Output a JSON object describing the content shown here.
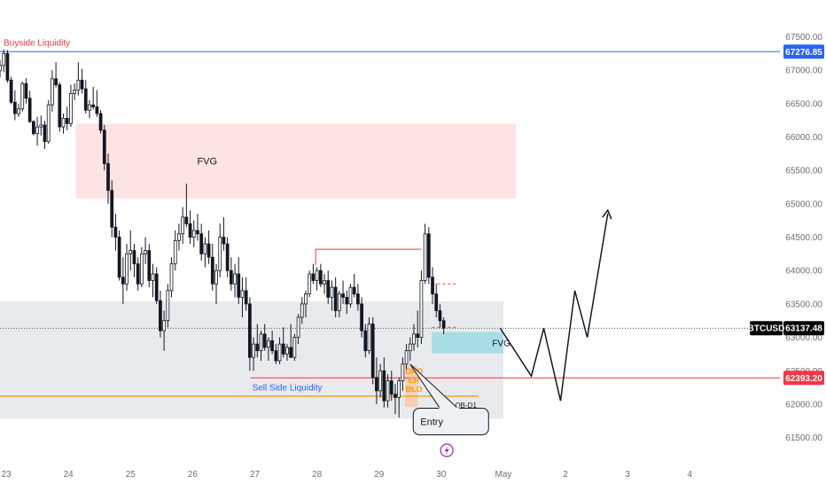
{
  "chart_data": {
    "type": "candlestick",
    "symbol": "BTCUSD",
    "y_axis": {
      "ticks": [
        "67500.00",
        "67000.00",
        "66500.00",
        "66000.00",
        "65500.00",
        "65000.00",
        "64500.00",
        "64000.00",
        "63500.00",
        "63000.00",
        "62500.00",
        "62000.00",
        "61500.00"
      ],
      "tick_values": [
        67500,
        67000,
        66500,
        66000,
        65500,
        65000,
        64500,
        64000,
        63500,
        63000,
        62500,
        62000,
        61500
      ],
      "ylim": [
        61150,
        68050
      ]
    },
    "x_axis": {
      "ticks": [
        "23",
        "24",
        "25",
        "26",
        "27",
        "28",
        "29",
        "30",
        "May",
        "2",
        "3",
        "4"
      ],
      "tick_days": [
        23,
        24,
        25,
        26,
        27,
        28,
        29,
        30,
        31,
        32,
        33,
        34
      ],
      "xlim": [
        22.9,
        35.45
      ]
    },
    "price_tags": [
      {
        "label": "67276.85",
        "value": 67276.85,
        "color": "#2962ff"
      },
      {
        "label": "63137.48",
        "value": 63137.48,
        "color": "#000000"
      },
      {
        "label": "62393.20",
        "value": 62393.2,
        "color": "#f23645"
      }
    ],
    "symbol_tag": "BTCUSD",
    "levels": [
      {
        "label": "Buyside Liquidity",
        "value": 67276.85,
        "color": "#2962ff"
      },
      {
        "label": "Sell Side Liquidity",
        "value": 62393.2,
        "color": "#f23645"
      },
      {
        "label": "",
        "value": 62120,
        "color": "#ff9800"
      }
    ],
    "zones": [
      {
        "label": "FVG",
        "x0": 24.12,
        "x1": 31.2,
        "y0": 65080,
        "y1": 66200,
        "color": "#fde3e3"
      },
      {
        "label": "FVG",
        "x0": 29.85,
        "x1": 31.0,
        "y0": 62760,
        "y1": 63080,
        "color": "#a8dde6"
      },
      {
        "label": "",
        "x0": 22.9,
        "x1": 31.0,
        "y0": 61780,
        "y1": 63540,
        "color": "#e8eaee"
      },
      {
        "label": "ORDER BLOCK",
        "x0": 29.42,
        "x1": 29.62,
        "y0": 61960,
        "y1": 62580,
        "color": "#f5cba7"
      }
    ],
    "annotations": {
      "ob_label": "OB-D1",
      "entry_label": "Entry",
      "order_block_text": "ORD ER BLO"
    },
    "candles": [
      [
        22.9,
        66990,
        67150,
        66890,
        67070
      ],
      [
        22.96,
        67070,
        67310,
        66970,
        67250
      ],
      [
        23.02,
        67250,
        67300,
        66810,
        66850
      ],
      [
        23.08,
        66850,
        66900,
        66490,
        66520
      ],
      [
        23.14,
        66520,
        66700,
        66250,
        66350
      ],
      [
        23.2,
        66350,
        66500,
        66300,
        66420
      ],
      [
        23.26,
        66420,
        66830,
        66380,
        66800
      ],
      [
        23.32,
        66800,
        66880,
        66500,
        66580
      ],
      [
        23.38,
        66580,
        66690,
        66210,
        66230
      ],
      [
        23.44,
        66230,
        66250,
        66020,
        66050
      ],
      [
        23.5,
        66050,
        66300,
        65870,
        66150
      ],
      [
        23.56,
        66150,
        66320,
        66020,
        66180
      ],
      [
        23.62,
        66180,
        66240,
        65820,
        65930
      ],
      [
        23.68,
        65930,
        66550,
        65900,
        66480
      ],
      [
        23.74,
        66480,
        67000,
        66380,
        66870
      ],
      [
        23.8,
        66870,
        67120,
        66740,
        66780
      ],
      [
        23.86,
        66780,
        66820,
        66080,
        66150
      ],
      [
        23.92,
        66150,
        66350,
        66050,
        66280
      ],
      [
        23.98,
        66280,
        66450,
        66100,
        66200
      ],
      [
        24.04,
        66200,
        66780,
        66150,
        66650
      ],
      [
        24.1,
        66650,
        66800,
        66550,
        66700
      ],
      [
        24.16,
        66700,
        67120,
        66620,
        66850
      ],
      [
        24.22,
        66850,
        67020,
        66650,
        66720
      ],
      [
        24.28,
        66720,
        66850,
        66350,
        66400
      ],
      [
        24.34,
        66400,
        66550,
        66280,
        66480
      ],
      [
        24.4,
        66480,
        66750,
        66410,
        66450
      ],
      [
        24.46,
        66450,
        66700,
        66300,
        66350
      ],
      [
        24.52,
        66350,
        66400,
        66050,
        66100
      ],
      [
        24.58,
        66100,
        66180,
        65500,
        65600
      ],
      [
        24.64,
        65600,
        65750,
        65000,
        65200
      ],
      [
        24.7,
        65200,
        65350,
        64500,
        64650
      ],
      [
        24.76,
        64650,
        64850,
        64300,
        64500
      ],
      [
        24.82,
        64500,
        64600,
        63850,
        63900
      ],
      [
        24.88,
        63900,
        64200,
        63500,
        63800
      ],
      [
        24.94,
        63800,
        64400,
        63700,
        64250
      ],
      [
        25.0,
        64250,
        64600,
        64000,
        64300
      ],
      [
        25.06,
        64300,
        64400,
        63900,
        64100
      ],
      [
        25.12,
        64100,
        64200,
        63700,
        63800
      ],
      [
        25.18,
        63800,
        64350,
        63750,
        64250
      ],
      [
        25.24,
        64250,
        64500,
        64100,
        64300
      ],
      [
        25.3,
        64300,
        64400,
        63750,
        63850
      ],
      [
        25.36,
        63850,
        64100,
        63600,
        63950
      ],
      [
        25.42,
        63950,
        64050,
        63500,
        63550
      ],
      [
        25.48,
        63550,
        63700,
        63000,
        63100
      ],
      [
        25.54,
        63100,
        63400,
        62800,
        63250
      ],
      [
        25.6,
        63250,
        63800,
        63150,
        63700
      ],
      [
        25.66,
        63700,
        64200,
        63600,
        64100
      ],
      [
        25.72,
        64100,
        64600,
        64000,
        64450
      ],
      [
        25.78,
        64450,
        64700,
        64300,
        64550
      ],
      [
        25.84,
        64550,
        64950,
        64400,
        64800
      ],
      [
        25.9,
        64800,
        65300,
        64650,
        64700
      ],
      [
        25.96,
        64700,
        64900,
        64400,
        64500
      ],
      [
        26.02,
        64500,
        64750,
        64350,
        64600
      ],
      [
        26.08,
        64600,
        64850,
        64450,
        64550
      ],
      [
        26.14,
        64550,
        64700,
        64150,
        64250
      ],
      [
        26.2,
        64250,
        64500,
        64050,
        64400
      ],
      [
        26.26,
        64400,
        64600,
        64100,
        64200
      ],
      [
        26.32,
        64200,
        64400,
        63700,
        63800
      ],
      [
        26.38,
        63800,
        64100,
        63500,
        64000
      ],
      [
        26.44,
        64000,
        64700,
        63900,
        64500
      ],
      [
        26.5,
        64500,
        64800,
        64300,
        64400
      ],
      [
        26.56,
        64400,
        64500,
        63900,
        64000
      ],
      [
        26.62,
        64000,
        64200,
        63700,
        63800
      ],
      [
        26.68,
        63800,
        64100,
        63600,
        63950
      ],
      [
        26.74,
        63950,
        64200,
        63500,
        63600
      ],
      [
        26.8,
        63600,
        63900,
        63300,
        63700
      ],
      [
        26.86,
        63700,
        63900,
        63400,
        63500
      ],
      [
        26.92,
        63500,
        63600,
        62500,
        62700
      ],
      [
        26.98,
        62700,
        63000,
        62500,
        62900
      ],
      [
        27.04,
        62900,
        63200,
        62700,
        62800
      ],
      [
        27.1,
        62800,
        63100,
        62650,
        63050
      ],
      [
        27.16,
        63050,
        63200,
        62800,
        62850
      ],
      [
        27.22,
        62850,
        63000,
        62650,
        62950
      ],
      [
        27.28,
        62950,
        63100,
        62750,
        62800
      ],
      [
        27.34,
        62800,
        62900,
        62600,
        62650
      ],
      [
        27.4,
        62650,
        63000,
        62600,
        62900
      ],
      [
        27.46,
        62900,
        63150,
        62700,
        62750
      ],
      [
        27.52,
        62750,
        62900,
        62650,
        62850
      ],
      [
        27.58,
        62850,
        63200,
        62700,
        62700
      ],
      [
        27.64,
        62700,
        63050,
        62650,
        63000
      ],
      [
        27.7,
        63000,
        63350,
        62900,
        63300
      ],
      [
        27.76,
        63300,
        63600,
        63200,
        63500
      ],
      [
        27.82,
        63500,
        63700,
        63300,
        63650
      ],
      [
        27.88,
        63650,
        64000,
        63600,
        63950
      ],
      [
        27.94,
        63950,
        64100,
        63800,
        63850
      ],
      [
        28.0,
        63850,
        64050,
        63700,
        64000
      ],
      [
        28.06,
        64000,
        64100,
        63750,
        63800
      ],
      [
        28.12,
        63800,
        63950,
        63650,
        63850
      ],
      [
        28.18,
        63850,
        64000,
        63500,
        63600
      ],
      [
        28.24,
        63600,
        63850,
        63400,
        63750
      ],
      [
        28.3,
        63750,
        63900,
        63300,
        63400
      ],
      [
        28.36,
        63400,
        63700,
        63300,
        63650
      ],
      [
        28.42,
        63650,
        63850,
        63500,
        63600
      ],
      [
        28.48,
        63600,
        63700,
        63350,
        63500
      ],
      [
        28.54,
        63500,
        63800,
        63450,
        63750
      ],
      [
        28.6,
        63750,
        63950,
        63600,
        63650
      ],
      [
        28.66,
        63650,
        63800,
        63400,
        63500
      ],
      [
        28.72,
        63500,
        63600,
        63000,
        63100
      ],
      [
        28.78,
        63100,
        63200,
        62700,
        62800
      ],
      [
        28.84,
        62800,
        63300,
        62750,
        63200
      ],
      [
        28.9,
        63200,
        63300,
        62300,
        62400
      ],
      [
        28.96,
        62400,
        62700,
        62000,
        62200
      ],
      [
        29.02,
        62200,
        62600,
        62100,
        62500
      ],
      [
        29.08,
        62500,
        62700,
        61950,
        62050
      ],
      [
        29.14,
        62050,
        62450,
        61950,
        62350
      ],
      [
        29.2,
        62350,
        62500,
        62050,
        62150
      ],
      [
        29.26,
        62150,
        62300,
        61850,
        62100
      ],
      [
        29.32,
        62100,
        62400,
        61800,
        62350
      ],
      [
        29.38,
        62350,
        62700,
        62200,
        62600
      ],
      [
        29.44,
        62600,
        62900,
        62500,
        62800
      ],
      [
        29.5,
        62800,
        63000,
        62650,
        62900
      ],
      [
        29.56,
        62900,
        63200,
        62800,
        63050
      ],
      [
        29.62,
        63050,
        63400,
        62850,
        63000
      ],
      [
        29.68,
        63000,
        64000,
        62900,
        63850
      ],
      [
        29.74,
        63850,
        64700,
        63800,
        64550
      ],
      [
        29.8,
        64550,
        64650,
        63800,
        63900
      ],
      [
        29.86,
        63900,
        64050,
        63500,
        63650
      ],
      [
        29.92,
        63650,
        63800,
        63300,
        63400
      ],
      [
        29.98,
        63400,
        63500,
        63150,
        63250
      ],
      [
        30.04,
        63250,
        63300,
        63050,
        63137
      ]
    ]
  }
}
